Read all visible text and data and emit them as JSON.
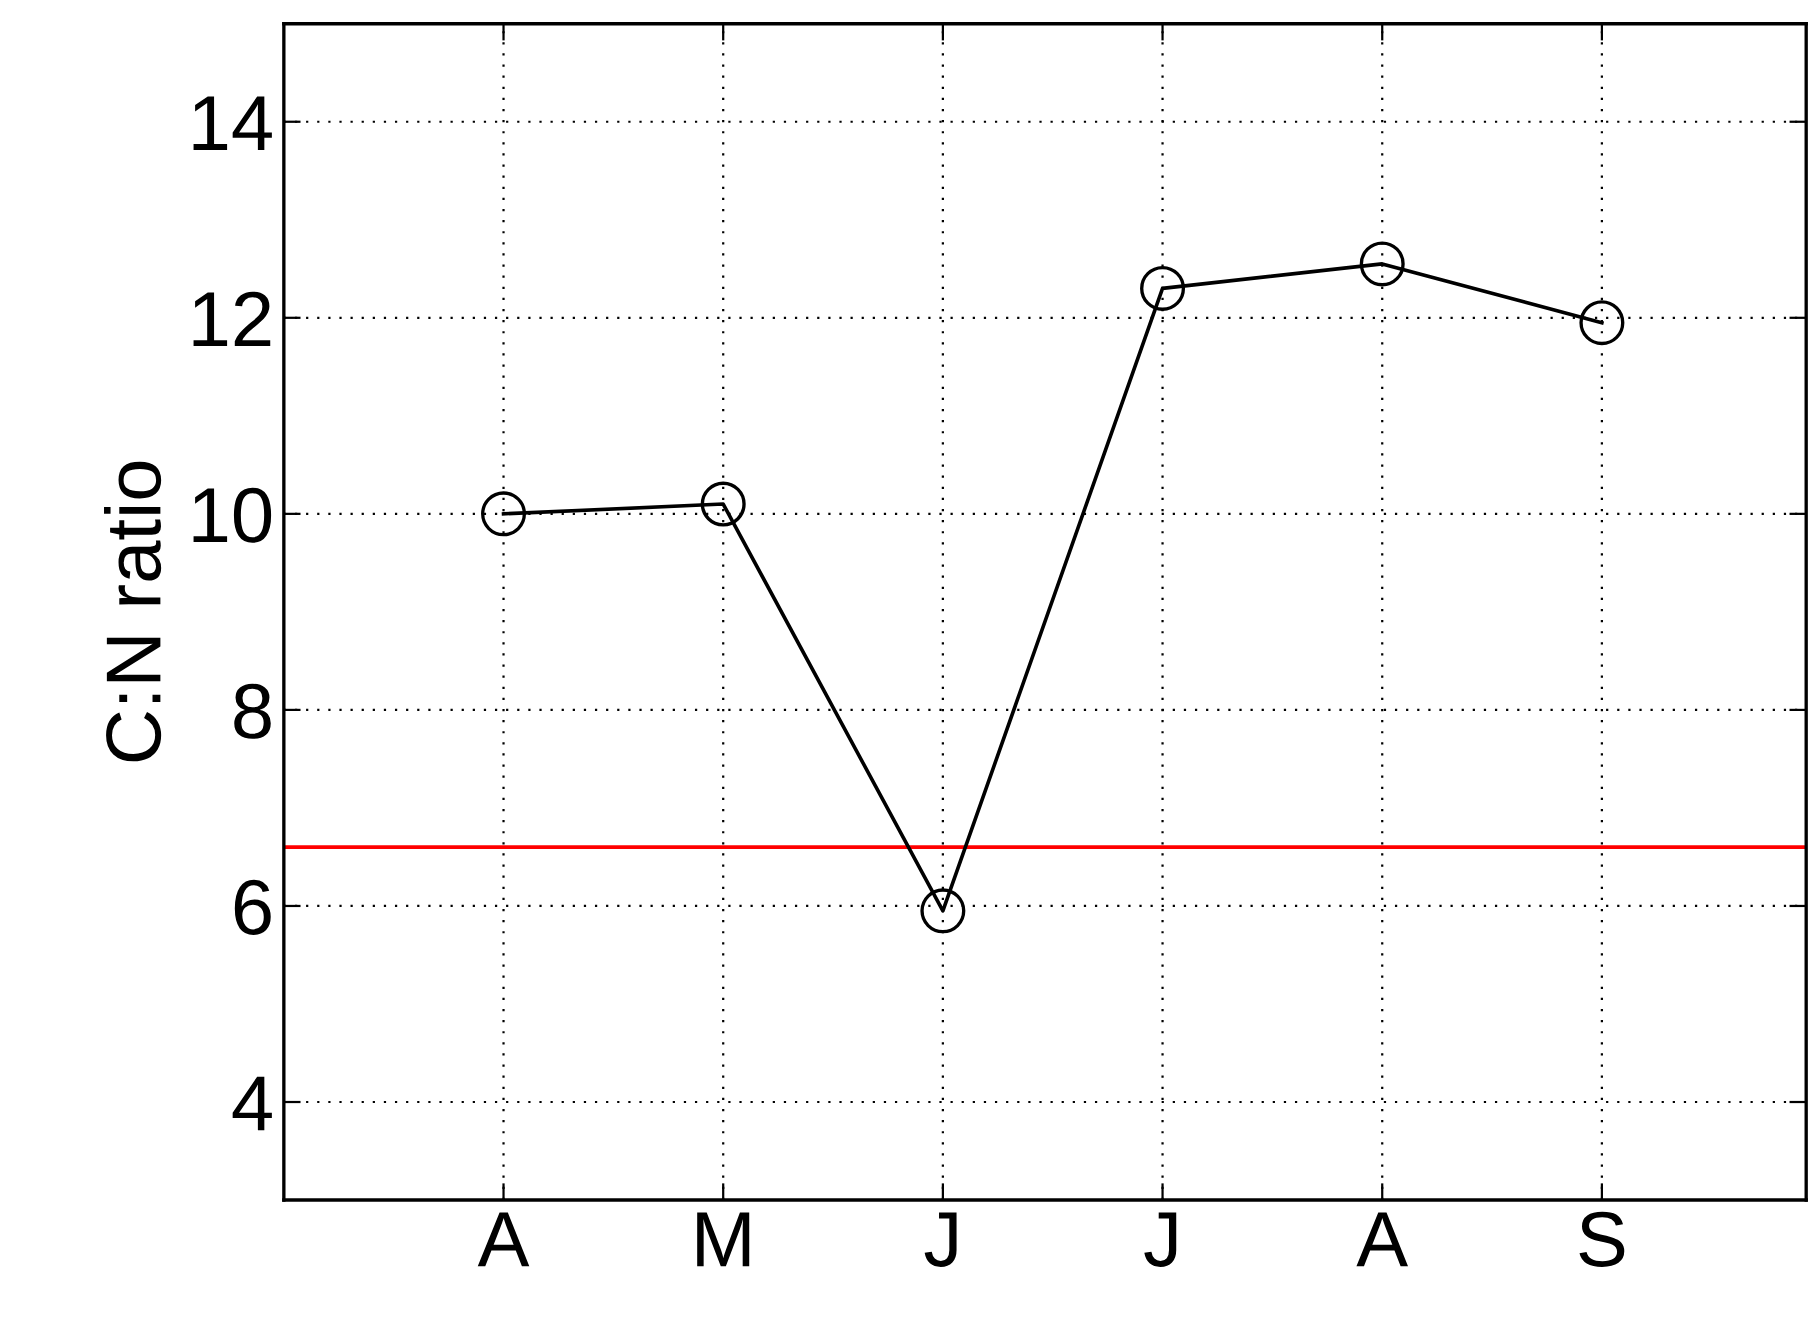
{
  "chart_data": {
    "type": "line",
    "ylabel": "C:N ratio",
    "categories": [
      "A",
      "M",
      "J",
      "J",
      "A",
      "S"
    ],
    "series": [
      {
        "color": "#000000",
        "values": [
          10.0,
          10.1,
          5.95,
          12.3,
          12.55,
          11.95
        ]
      }
    ],
    "ylim": [
      3,
      15
    ],
    "yticks": [
      4,
      6,
      8,
      10,
      12,
      14
    ],
    "ref_lines": [
      {
        "axis": "y",
        "value": 6.6,
        "color": "#ff0000",
        "line_style": "solid"
      }
    ],
    "grid": true,
    "marker": "circle",
    "line_style": "solid"
  }
}
